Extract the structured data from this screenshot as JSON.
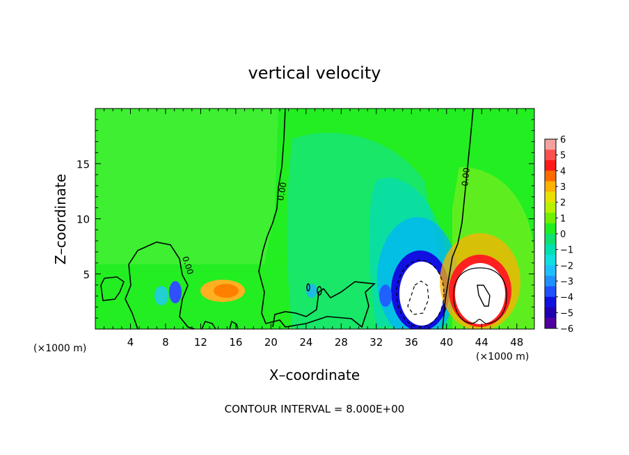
{
  "chart_data": {
    "type": "heatmap",
    "title": "vertical velocity",
    "xlabel": "X–coordinate",
    "ylabel": "Z–coordinate",
    "x_units": "(×1000 m)",
    "z_units": "(×1000 m)",
    "xlim": [
      0,
      50
    ],
    "ylim": [
      0,
      20
    ],
    "x_ticks": [
      4,
      8,
      12,
      16,
      20,
      24,
      28,
      32,
      36,
      40,
      44,
      48
    ],
    "y_ticks": [
      5,
      10,
      15
    ],
    "colorbar": {
      "min": -6,
      "max": 6,
      "ticks": [
        6,
        5,
        4,
        3,
        2,
        1,
        0,
        -1,
        -2,
        -3,
        -4,
        -5,
        -6
      ],
      "tick_labels": [
        "6",
        "5",
        "4",
        "3",
        "2",
        "1",
        "0",
        "−1",
        "−2",
        "−3",
        "−4",
        "−5",
        "−6"
      ]
    },
    "contour_labels": [
      "0.00",
      "0.00",
      "0.00"
    ],
    "contour_interval_text": "CONTOUR INTERVAL = 8.000E+00",
    "grid": false,
    "colors": {
      "background_field": "#22ee22",
      "updraft_core": "#ff2020",
      "downdraft_core": "#1010e0",
      "contour_line": "#000000"
    },
    "features": [
      {
        "kind": "downdraft",
        "x": 37,
        "z": 3.5,
        "value": -6
      },
      {
        "kind": "updraft",
        "x": 43.5,
        "z": 3.5,
        "value": 6
      },
      {
        "kind": "updraft",
        "x": 15,
        "z": 3.5,
        "value": 3
      },
      {
        "kind": "downdraft",
        "x": 9.5,
        "z": 3.2,
        "value": -3
      },
      {
        "kind": "downdraft",
        "x": 33,
        "z": 3.2,
        "value": -3
      }
    ]
  }
}
